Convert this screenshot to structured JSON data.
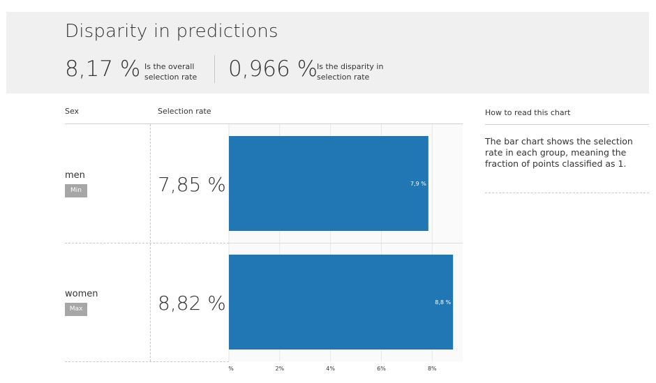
{
  "header": {
    "title": "Disparity in predictions",
    "overall": {
      "value": "8,17 %",
      "desc_line1": "Is the overall",
      "desc_line2": "selection rate"
    },
    "disparity": {
      "value": "0,966 %",
      "desc_line1": "Is the disparity in",
      "desc_line2": "selection rate"
    }
  },
  "table": {
    "col_group": "Sex",
    "col_rate": "Selection rate",
    "rows": [
      {
        "group": "men",
        "badge": "Min",
        "rate": "7,85 %"
      },
      {
        "group": "women",
        "badge": "Max",
        "rate": "8,82 %"
      }
    ]
  },
  "chart_data": {
    "type": "bar",
    "orientation": "horizontal",
    "categories": [
      "men",
      "women"
    ],
    "values": [
      7.85,
      8.82
    ],
    "data_labels": [
      "7,9 %",
      "8,8 %"
    ],
    "xlim": [
      0,
      9.2
    ],
    "xticks": [
      0,
      2,
      4,
      6,
      8
    ],
    "xtick_labels": [
      "%",
      "2%",
      "4%",
      "6%",
      "8%"
    ],
    "bar_color": "#2177b4",
    "grid": true
  },
  "help": {
    "title": "How to read this chart",
    "text": "The bar chart shows the selection rate in each group, meaning the fraction of points classified as 1."
  },
  "colors": {
    "banner_bg": "#f0f0f0",
    "badge_bg": "#a6a6a6",
    "bar": "#2177b4"
  }
}
